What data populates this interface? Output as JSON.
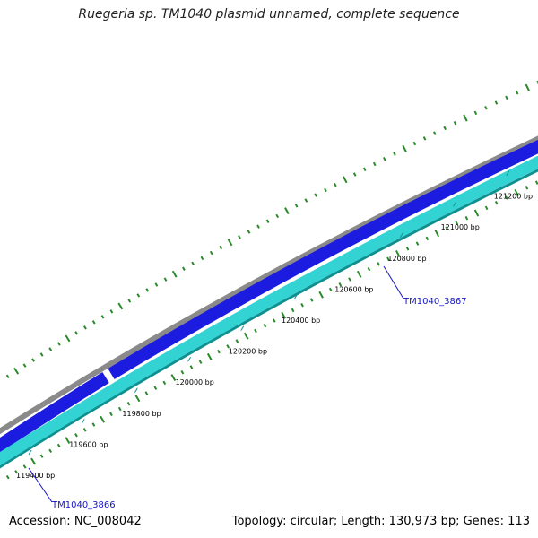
{
  "title": "Ruegeria sp. TM1040 plasmid unnamed, complete sequence",
  "footer": {
    "accession": "Accession: NC_008042",
    "topology": "Topology: circular; Length: 130,973 bp; Genes: 113"
  },
  "ruler": {
    "unit": "bp",
    "labels": [
      "119400 bp",
      "119600 bp",
      "119800 bp",
      "120000 bp",
      "120200 bp",
      "120400 bp",
      "120600 bp",
      "120800 bp",
      "121000 bp",
      "121200 bp"
    ]
  },
  "genes": [
    {
      "name": "TM1040_3866",
      "strand": "+"
    },
    {
      "name": "TM1040_3867",
      "strand": "-"
    }
  ],
  "colors": {
    "backbone": "#8a8a8a",
    "forward_cds": "#1c1ce0",
    "reverse_cds": "#33d3d3",
    "reverse_edge": "#0f8f8f",
    "gc_skew": "#2a8a2a",
    "gene_label": "#1414c8"
  }
}
